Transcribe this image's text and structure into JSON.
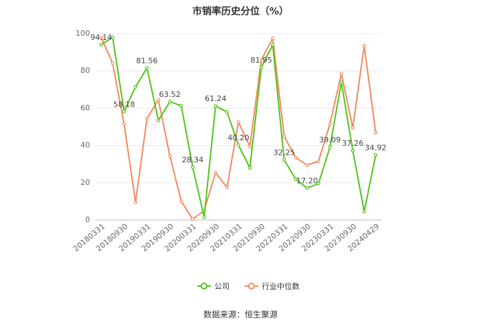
{
  "chart_data": {
    "type": "line",
    "title": "市销率历史分位（%）",
    "categories": [
      "20180331",
      null,
      "20180930",
      null,
      "20190331",
      null,
      "20190930",
      null,
      "20200331",
      null,
      "20200930",
      null,
      "20210331",
      null,
      "20210930",
      null,
      "20220331",
      null,
      "20220930",
      null,
      "20230331",
      null,
      "20230930",
      null,
      "20240429"
    ],
    "series": [
      {
        "name": "公司",
        "color": "#52c41a",
        "values": [
          94.14,
          98,
          58.18,
          71.5,
          81.56,
          53.5,
          63.52,
          61.3,
          28.34,
          1.5,
          61.24,
          58,
          40.2,
          28,
          81.95,
          94,
          32.25,
          22,
          17.2,
          19.5,
          39.09,
          74,
          37.26,
          4.5,
          34.92
        ],
        "value_labels": [
          "94.14",
          null,
          "58.18",
          null,
          "81.56",
          null,
          "63.52",
          null,
          "28.34",
          null,
          "61.24",
          null,
          "40.20",
          null,
          "81.95",
          null,
          "32.25",
          null,
          "17.20",
          null,
          "39.09",
          null,
          "37.26",
          null,
          "34.92"
        ]
      },
      {
        "name": "行业中位数",
        "color": "#f4895f",
        "values": [
          98,
          84,
          51.5,
          9.5,
          54.5,
          64.5,
          34.5,
          10,
          0.5,
          5,
          25.5,
          17.5,
          52.5,
          39.5,
          86,
          97.5,
          45,
          33.5,
          29.5,
          31.5,
          51.5,
          78.5,
          49.5,
          93.5,
          47
        ]
      }
    ],
    "ylim": [
      0,
      100
    ],
    "yticks": [
      0,
      20,
      40,
      60,
      80,
      100
    ],
    "grid": true,
    "source": "数据来源：恒生聚源"
  }
}
